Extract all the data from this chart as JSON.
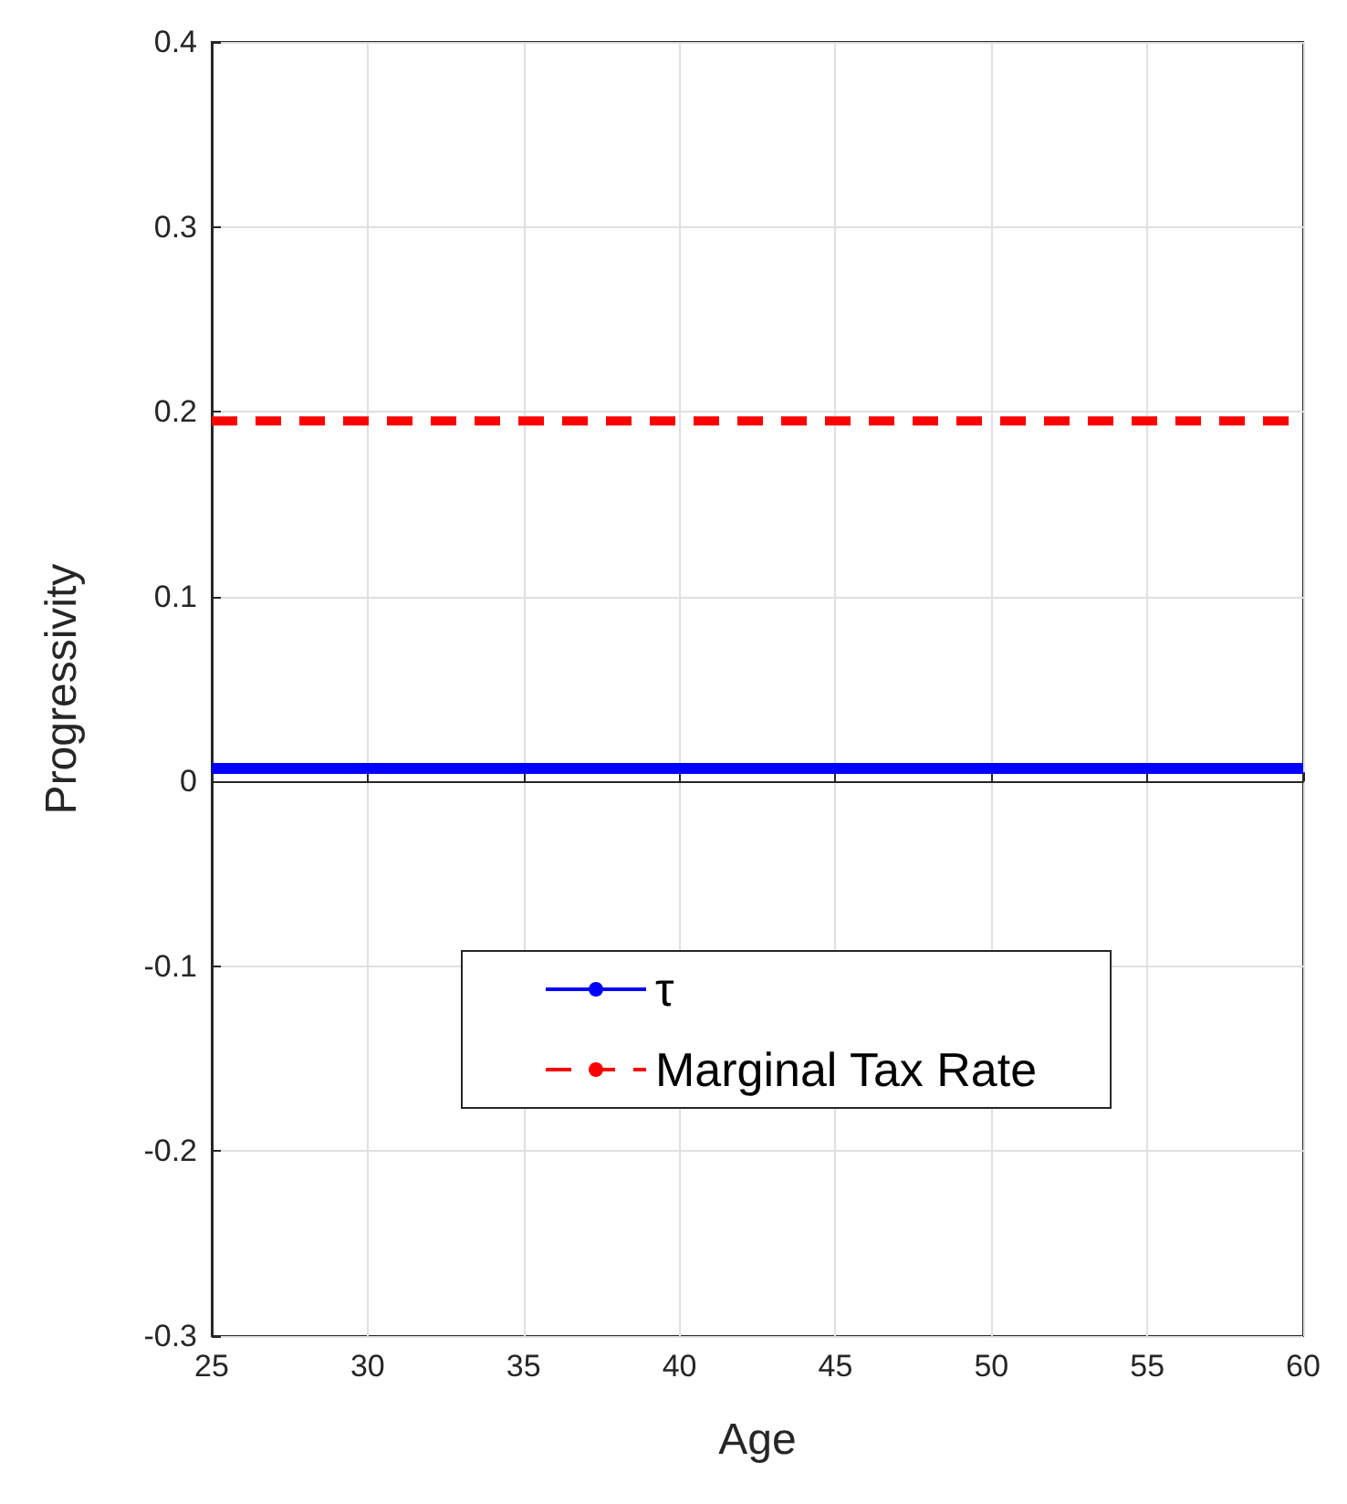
{
  "chart_data": {
    "type": "line",
    "xlabel": "Age",
    "ylabel": "Progressivity",
    "x": [
      25,
      60
    ],
    "series": [
      {
        "name": "τ",
        "color": "#0000ff",
        "values": [
          0.007,
          0.007
        ],
        "line_style": "solid"
      },
      {
        "name": "Marginal Tax Rate",
        "color": "#ff0000",
        "values": [
          0.195,
          0.195
        ],
        "line_style": "dashed"
      }
    ],
    "xlim": [
      25,
      60
    ],
    "xticks": [
      25,
      30,
      35,
      40,
      45,
      50,
      55,
      60
    ],
    "ylim": [
      -0.3,
      0.4
    ],
    "yticks": [
      -0.3,
      -0.2,
      -0.1,
      0,
      0.1,
      0.2,
      0.3,
      0.4
    ],
    "grid": true,
    "legend": "bottom",
    "marker": "none"
  }
}
